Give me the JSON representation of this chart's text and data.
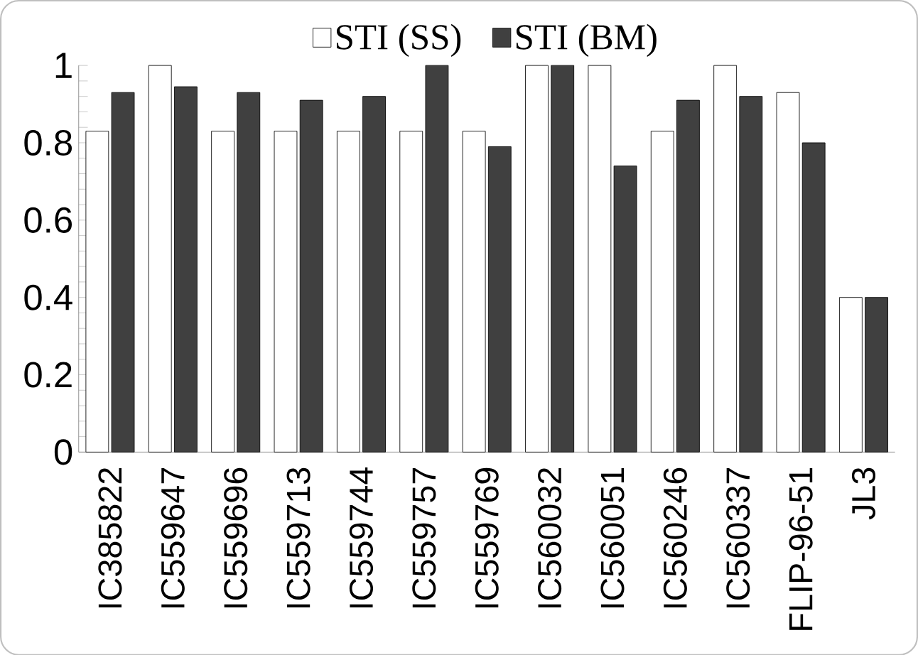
{
  "chart_data": {
    "type": "bar",
    "categories": [
      "IC385822",
      "IC559647",
      "IC559696",
      "IC559713",
      "IC559744",
      "IC559757",
      "IC559769",
      "IC560032",
      "IC560051",
      "IC560246",
      "IC560337",
      "FLIP-96-51",
      "JL3"
    ],
    "series": [
      {
        "name": "STI (SS)",
        "color": "#ffffff",
        "values": [
          0.83,
          1,
          0.83,
          0.83,
          0.83,
          0.83,
          0.83,
          1,
          1,
          0.83,
          1,
          0.93,
          0.4
        ]
      },
      {
        "name": "STI (BM)",
        "color": "#404040",
        "values": [
          0.93,
          0.945,
          0.93,
          0.91,
          0.92,
          1,
          0.79,
          1,
          0.74,
          0.91,
          0.92,
          0.8,
          0.4
        ]
      }
    ],
    "ylim": [
      0,
      1
    ],
    "yticks": [
      0,
      0.2,
      0.4,
      0.6,
      0.8,
      1
    ],
    "grid": false,
    "legend": "top"
  }
}
